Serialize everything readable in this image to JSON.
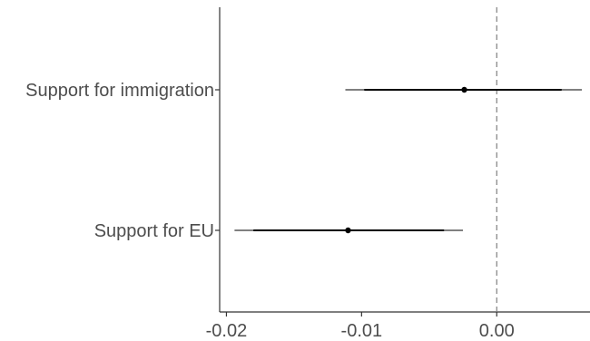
{
  "chart_data": {
    "type": "forest",
    "title": "",
    "xlabel": "",
    "ylabel": "",
    "xlim": [
      -0.0205,
      0.0069
    ],
    "x_ticks": [
      -0.02,
      -0.01,
      0.0
    ],
    "x_tick_labels": [
      "-0.02",
      "-0.01",
      "0.00"
    ],
    "reference_line": {
      "x": 0.0,
      "style": "dashed",
      "color": "#7f7f7f"
    },
    "grid": false,
    "legend": "none",
    "point_color": "#000000",
    "categories": [
      "Support for immigration",
      "Support for EU"
    ],
    "estimates": [
      {
        "label": "Support for immigration",
        "estimate": -0.0024,
        "ci_inner": [
          -0.0098,
          0.0048
        ],
        "ci_outer": [
          -0.0112,
          0.0063
        ]
      },
      {
        "label": "Support for EU",
        "estimate": -0.011,
        "ci_inner": [
          -0.018,
          -0.0039
        ],
        "ci_outer": [
          -0.0194,
          -0.0025
        ]
      }
    ]
  }
}
